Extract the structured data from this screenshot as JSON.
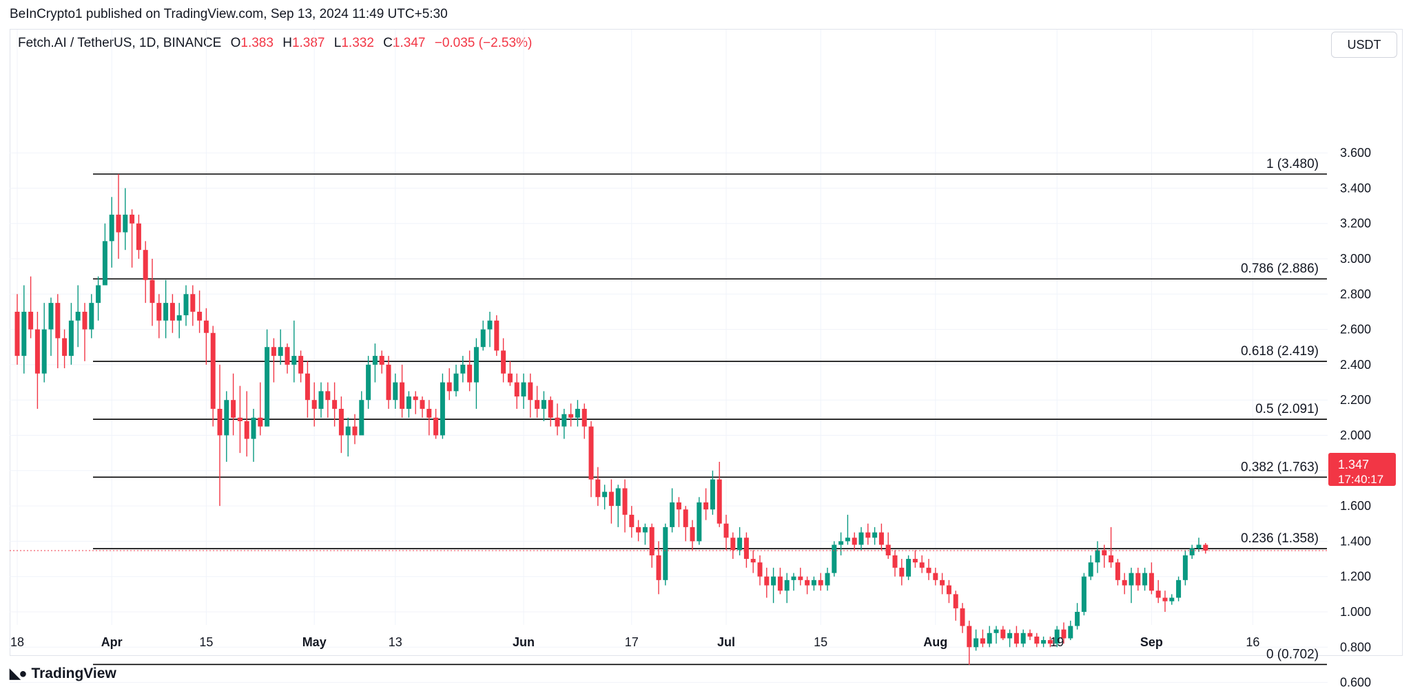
{
  "header": {
    "publisher": "BeInCrypto1 published on TradingView.com, Sep 13, 2024 11:49 UTC+5:30",
    "symbol": "Fetch.AI / TetherUS, 1D, BINANCE",
    "o_label": "O",
    "o_value": "1.383",
    "h_label": "H",
    "h_value": "1.387",
    "l_label": "L",
    "l_value": "1.332",
    "c_label": "C",
    "c_value": "1.347",
    "change": "−0.035 (−2.53%)"
  },
  "currency_button": "USDT",
  "price_tag": {
    "price": "1.347",
    "countdown": "17:40:17"
  },
  "footer": {
    "brand": "TradingView"
  },
  "colors": {
    "up": "#089981",
    "down": "#f23645",
    "text": "#131722",
    "grid": "#f0f3fa",
    "fib_line": "#000000"
  },
  "chart_data": {
    "type": "candlestick",
    "title": "Fetch.AI / TetherUS, 1D, BINANCE",
    "ylabel": "USDT",
    "ylim": [
      0.52,
      3.72
    ],
    "grid": true,
    "y_ticks": [
      "3.600",
      "3.400",
      "3.200",
      "3.000",
      "2.800",
      "2.600",
      "2.400",
      "2.200",
      "2.000",
      "1.800",
      "1.600",
      "1.400",
      "1.200",
      "1.000",
      "0.800",
      "0.600"
    ],
    "x_ticks": [
      {
        "label": "18",
        "day": 0
      },
      {
        "label": "Apr",
        "day": 14
      },
      {
        "label": "15",
        "day": 28
      },
      {
        "label": "May",
        "day": 44
      },
      {
        "label": "13",
        "day": 56
      },
      {
        "label": "Jun",
        "day": 75
      },
      {
        "label": "17",
        "day": 91
      },
      {
        "label": "Jul",
        "day": 105
      },
      {
        "label": "15",
        "day": 119
      },
      {
        "label": "Aug",
        "day": 136
      },
      {
        "label": "19",
        "day": 154
      },
      {
        "label": "Sep",
        "day": 168
      },
      {
        "label": "16",
        "day": 183
      }
    ],
    "fib_levels": [
      {
        "label": "1 (3.480)",
        "value": 3.48
      },
      {
        "label": "0.786 (2.886)",
        "value": 2.886
      },
      {
        "label": "0.618 (2.419)",
        "value": 2.419
      },
      {
        "label": "0.5 (2.091)",
        "value": 2.091
      },
      {
        "label": "0.382 (1.763)",
        "value": 1.763
      },
      {
        "label": "0.236 (1.358)",
        "value": 1.358
      },
      {
        "label": "0 (0.702)",
        "value": 0.702
      }
    ],
    "current_price": 1.347,
    "candles": [
      [
        2.7,
        2.8,
        2.4,
        2.45
      ],
      [
        2.45,
        2.85,
        2.35,
        2.7
      ],
      [
        2.7,
        2.9,
        2.55,
        2.6
      ],
      [
        2.6,
        2.7,
        2.15,
        2.35
      ],
      [
        2.35,
        2.75,
        2.3,
        2.6
      ],
      [
        2.6,
        2.78,
        2.45,
        2.75
      ],
      [
        2.75,
        2.8,
        2.38,
        2.55
      ],
      [
        2.55,
        2.6,
        2.38,
        2.45
      ],
      [
        2.45,
        2.75,
        2.4,
        2.65
      ],
      [
        2.65,
        2.85,
        2.5,
        2.7
      ],
      [
        2.7,
        2.75,
        2.42,
        2.6
      ],
      [
        2.6,
        2.8,
        2.55,
        2.75
      ],
      [
        2.75,
        2.9,
        2.65,
        2.85
      ],
      [
        2.85,
        3.2,
        2.85,
        3.1
      ],
      [
        3.1,
        3.35,
        2.95,
        3.25
      ],
      [
        3.25,
        3.48,
        3.0,
        3.15
      ],
      [
        3.15,
        3.4,
        3.05,
        3.25
      ],
      [
        3.25,
        3.28,
        2.95,
        3.2
      ],
      [
        3.2,
        3.25,
        3.0,
        3.05
      ],
      [
        3.05,
        3.1,
        2.75,
        2.88
      ],
      [
        2.88,
        3.0,
        2.62,
        2.75
      ],
      [
        2.75,
        2.8,
        2.55,
        2.65
      ],
      [
        2.65,
        2.88,
        2.55,
        2.75
      ],
      [
        2.75,
        2.8,
        2.58,
        2.65
      ],
      [
        2.65,
        2.75,
        2.55,
        2.68
      ],
      [
        2.68,
        2.85,
        2.62,
        2.8
      ],
      [
        2.8,
        2.85,
        2.62,
        2.7
      ],
      [
        2.7,
        2.82,
        2.58,
        2.65
      ],
      [
        2.65,
        2.72,
        2.4,
        2.58
      ],
      [
        2.58,
        2.62,
        2.05,
        2.15
      ],
      [
        2.15,
        2.4,
        1.6,
        2.0
      ],
      [
        2.0,
        2.25,
        1.85,
        2.2
      ],
      [
        2.2,
        2.35,
        2.0,
        2.1
      ],
      [
        2.1,
        2.28,
        1.9,
        2.08
      ],
      [
        2.08,
        2.25,
        1.88,
        1.98
      ],
      [
        1.98,
        2.15,
        1.85,
        2.1
      ],
      [
        2.1,
        2.3,
        2.0,
        2.05
      ],
      [
        2.05,
        2.6,
        2.05,
        2.5
      ],
      [
        2.5,
        2.55,
        2.3,
        2.45
      ],
      [
        2.45,
        2.6,
        2.4,
        2.5
      ],
      [
        2.5,
        2.52,
        2.35,
        2.4
      ],
      [
        2.4,
        2.65,
        2.3,
        2.45
      ],
      [
        2.45,
        2.48,
        2.3,
        2.35
      ],
      [
        2.35,
        2.42,
        2.1,
        2.2
      ],
      [
        2.2,
        2.3,
        2.05,
        2.15
      ],
      [
        2.15,
        2.3,
        2.1,
        2.25
      ],
      [
        2.25,
        2.3,
        2.1,
        2.2
      ],
      [
        2.2,
        2.3,
        2.05,
        2.15
      ],
      [
        2.15,
        2.22,
        1.9,
        2.0
      ],
      [
        2.0,
        2.1,
        1.88,
        2.05
      ],
      [
        2.05,
        2.12,
        1.95,
        2.0
      ],
      [
        2.0,
        2.25,
        2.0,
        2.2
      ],
      [
        2.2,
        2.45,
        2.15,
        2.4
      ],
      [
        2.4,
        2.52,
        2.3,
        2.45
      ],
      [
        2.45,
        2.48,
        2.35,
        2.4
      ],
      [
        2.4,
        2.45,
        2.15,
        2.2
      ],
      [
        2.2,
        2.35,
        2.15,
        2.3
      ],
      [
        2.3,
        2.4,
        2.1,
        2.15
      ],
      [
        2.15,
        2.25,
        2.1,
        2.22
      ],
      [
        2.22,
        2.25,
        2.12,
        2.2
      ],
      [
        2.2,
        2.22,
        2.1,
        2.15
      ],
      [
        2.15,
        2.2,
        2.0,
        2.1
      ],
      [
        2.1,
        2.15,
        1.98,
        2.0
      ],
      [
        2.0,
        2.35,
        1.98,
        2.3
      ],
      [
        2.3,
        2.38,
        2.2,
        2.25
      ],
      [
        2.25,
        2.4,
        2.22,
        2.35
      ],
      [
        2.35,
        2.45,
        2.3,
        2.4
      ],
      [
        2.4,
        2.48,
        2.25,
        2.3
      ],
      [
        2.3,
        2.55,
        2.15,
        2.5
      ],
      [
        2.5,
        2.65,
        2.48,
        2.6
      ],
      [
        2.6,
        2.7,
        2.5,
        2.65
      ],
      [
        2.65,
        2.68,
        2.45,
        2.48
      ],
      [
        2.48,
        2.55,
        2.3,
        2.35
      ],
      [
        2.35,
        2.42,
        2.28,
        2.3
      ],
      [
        2.3,
        2.35,
        2.15,
        2.22
      ],
      [
        2.22,
        2.35,
        2.15,
        2.3
      ],
      [
        2.3,
        2.35,
        2.1,
        2.2
      ],
      [
        2.2,
        2.28,
        2.1,
        2.15
      ],
      [
        2.15,
        2.25,
        2.08,
        2.2
      ],
      [
        2.2,
        2.22,
        2.05,
        2.1
      ],
      [
        2.1,
        2.18,
        2.0,
        2.05
      ],
      [
        2.05,
        2.15,
        1.98,
        2.12
      ],
      [
        2.12,
        2.18,
        2.05,
        2.1
      ],
      [
        2.1,
        2.2,
        2.05,
        2.15
      ],
      [
        2.15,
        2.18,
        1.98,
        2.05
      ],
      [
        2.05,
        2.08,
        1.65,
        1.75
      ],
      [
        1.75,
        1.82,
        1.6,
        1.65
      ],
      [
        1.65,
        1.72,
        1.58,
        1.68
      ],
      [
        1.68,
        1.75,
        1.5,
        1.6
      ],
      [
        1.6,
        1.72,
        1.48,
        1.7
      ],
      [
        1.7,
        1.75,
        1.45,
        1.55
      ],
      [
        1.55,
        1.6,
        1.42,
        1.48
      ],
      [
        1.48,
        1.52,
        1.4,
        1.45
      ],
      [
        1.45,
        1.5,
        1.38,
        1.48
      ],
      [
        1.48,
        1.5,
        1.25,
        1.32
      ],
      [
        1.32,
        1.4,
        1.1,
        1.18
      ],
      [
        1.18,
        1.5,
        1.15,
        1.48
      ],
      [
        1.48,
        1.7,
        1.45,
        1.62
      ],
      [
        1.62,
        1.65,
        1.48,
        1.58
      ],
      [
        1.58,
        1.6,
        1.4,
        1.48
      ],
      [
        1.48,
        1.52,
        1.35,
        1.4
      ],
      [
        1.4,
        1.65,
        1.38,
        1.62
      ],
      [
        1.62,
        1.7,
        1.52,
        1.58
      ],
      [
        1.58,
        1.8,
        1.55,
        1.75
      ],
      [
        1.75,
        1.85,
        1.48,
        1.5
      ],
      [
        1.5,
        1.55,
        1.35,
        1.42
      ],
      [
        1.42,
        1.45,
        1.3,
        1.35
      ],
      [
        1.35,
        1.48,
        1.32,
        1.42
      ],
      [
        1.42,
        1.45,
        1.25,
        1.3
      ],
      [
        1.3,
        1.35,
        1.22,
        1.28
      ],
      [
        1.28,
        1.32,
        1.15,
        1.2
      ],
      [
        1.2,
        1.25,
        1.08,
        1.15
      ],
      [
        1.15,
        1.25,
        1.05,
        1.2
      ],
      [
        1.2,
        1.25,
        1.1,
        1.12
      ],
      [
        1.12,
        1.22,
        1.05,
        1.18
      ],
      [
        1.18,
        1.22,
        1.12,
        1.2
      ],
      [
        1.2,
        1.25,
        1.15,
        1.18
      ],
      [
        1.18,
        1.2,
        1.1,
        1.15
      ],
      [
        1.15,
        1.2,
        1.12,
        1.18
      ],
      [
        1.18,
        1.22,
        1.12,
        1.15
      ],
      [
        1.15,
        1.25,
        1.12,
        1.22
      ],
      [
        1.22,
        1.4,
        1.2,
        1.38
      ],
      [
        1.38,
        1.45,
        1.32,
        1.4
      ],
      [
        1.4,
        1.55,
        1.38,
        1.42
      ],
      [
        1.42,
        1.45,
        1.35,
        1.38
      ],
      [
        1.38,
        1.48,
        1.35,
        1.45
      ],
      [
        1.45,
        1.5,
        1.38,
        1.42
      ],
      [
        1.42,
        1.48,
        1.38,
        1.45
      ],
      [
        1.45,
        1.5,
        1.35,
        1.38
      ],
      [
        1.38,
        1.45,
        1.3,
        1.32
      ],
      [
        1.32,
        1.35,
        1.2,
        1.25
      ],
      [
        1.25,
        1.3,
        1.15,
        1.2
      ],
      [
        1.2,
        1.32,
        1.18,
        1.3
      ],
      [
        1.3,
        1.35,
        1.25,
        1.28
      ],
      [
        1.28,
        1.32,
        1.22,
        1.25
      ],
      [
        1.25,
        1.3,
        1.18,
        1.22
      ],
      [
        1.22,
        1.25,
        1.15,
        1.18
      ],
      [
        1.18,
        1.22,
        1.1,
        1.15
      ],
      [
        1.15,
        1.18,
        1.05,
        1.1
      ],
      [
        1.1,
        1.12,
        0.95,
        1.02
      ],
      [
        1.02,
        1.05,
        0.88,
        0.92
      ],
      [
        0.92,
        0.95,
        0.7,
        0.8
      ],
      [
        0.8,
        0.9,
        0.78,
        0.85
      ],
      [
        0.85,
        0.9,
        0.8,
        0.82
      ],
      [
        0.82,
        0.92,
        0.8,
        0.88
      ],
      [
        0.88,
        0.92,
        0.82,
        0.9
      ],
      [
        0.9,
        0.92,
        0.84,
        0.85
      ],
      [
        0.85,
        0.9,
        0.8,
        0.88
      ],
      [
        0.88,
        0.92,
        0.8,
        0.82
      ],
      [
        0.82,
        0.9,
        0.8,
        0.88
      ],
      [
        0.88,
        0.9,
        0.84,
        0.86
      ],
      [
        0.86,
        0.88,
        0.8,
        0.82
      ],
      [
        0.82,
        0.86,
        0.8,
        0.84
      ],
      [
        0.84,
        0.86,
        0.8,
        0.82
      ],
      [
        0.82,
        0.92,
        0.8,
        0.9
      ],
      [
        0.9,
        0.94,
        0.82,
        0.85
      ],
      [
        0.85,
        0.95,
        0.84,
        0.92
      ],
      [
        0.92,
        1.05,
        0.9,
        1.0
      ],
      [
        1.0,
        1.22,
        0.98,
        1.2
      ],
      [
        1.2,
        1.32,
        1.18,
        1.28
      ],
      [
        1.28,
        1.4,
        1.22,
        1.35
      ],
      [
        1.35,
        1.38,
        1.25,
        1.32
      ],
      [
        1.32,
        1.48,
        1.25,
        1.28
      ],
      [
        1.28,
        1.3,
        1.15,
        1.18
      ],
      [
        1.18,
        1.22,
        1.1,
        1.15
      ],
      [
        1.15,
        1.25,
        1.05,
        1.22
      ],
      [
        1.22,
        1.25,
        1.12,
        1.15
      ],
      [
        1.15,
        1.25,
        1.12,
        1.22
      ],
      [
        1.22,
        1.28,
        1.1,
        1.12
      ],
      [
        1.12,
        1.18,
        1.05,
        1.08
      ],
      [
        1.08,
        1.12,
        1.0,
        1.06
      ],
      [
        1.06,
        1.1,
        1.04,
        1.08
      ],
      [
        1.08,
        1.2,
        1.06,
        1.18
      ],
      [
        1.18,
        1.35,
        1.15,
        1.32
      ],
      [
        1.32,
        1.38,
        1.3,
        1.36
      ],
      [
        1.36,
        1.42,
        1.34,
        1.38
      ],
      [
        1.38,
        1.39,
        1.33,
        1.347
      ]
    ]
  }
}
